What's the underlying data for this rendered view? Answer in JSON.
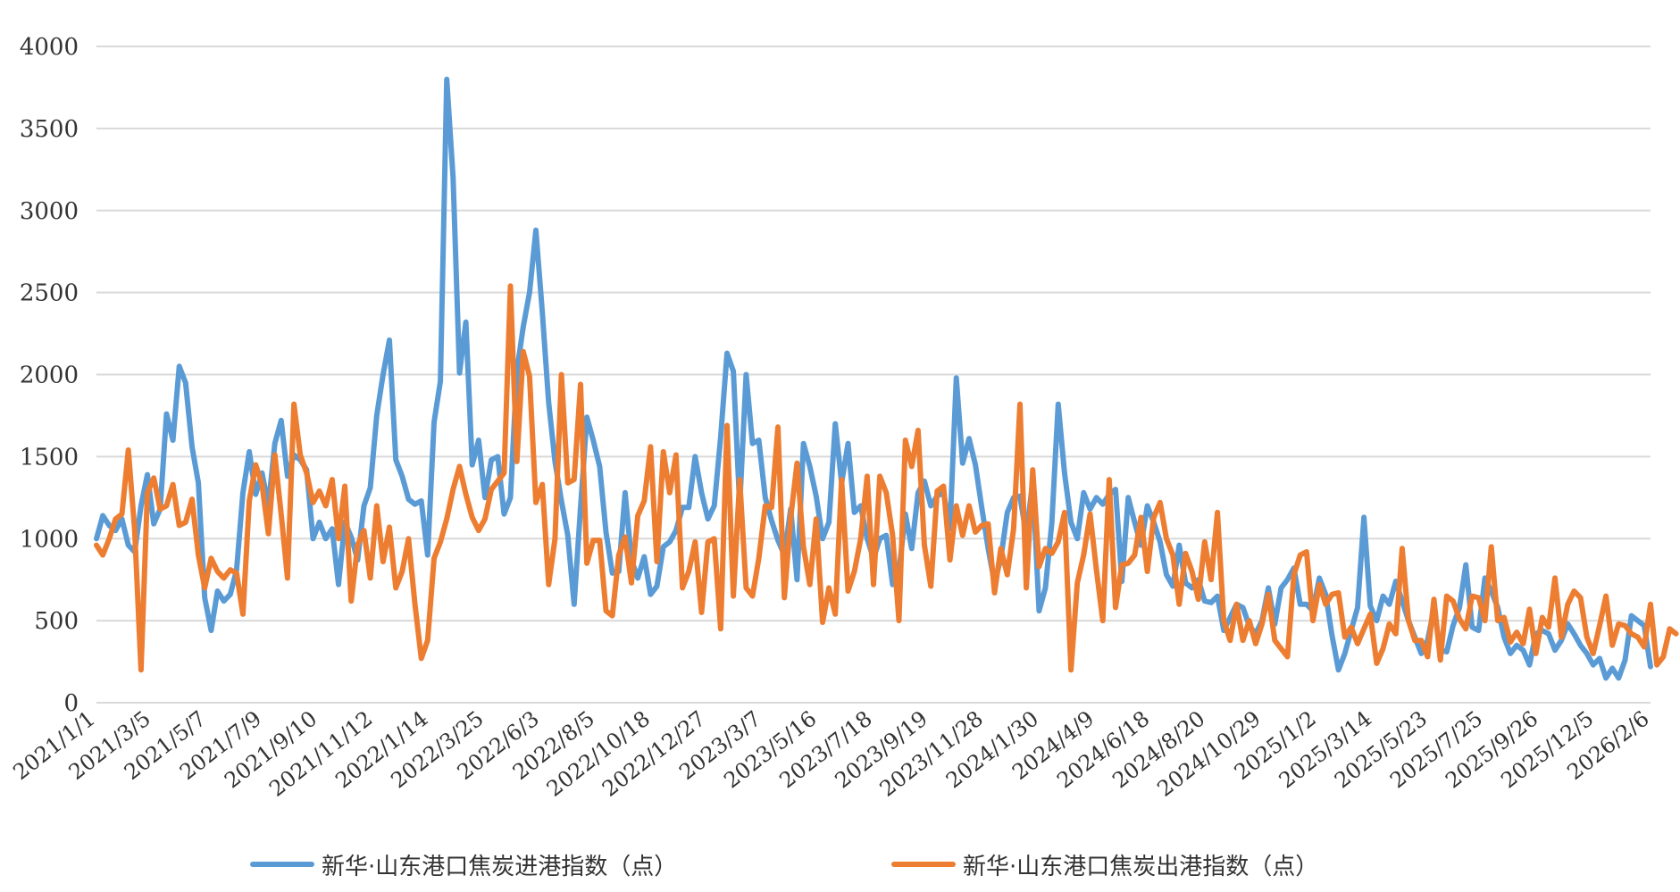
{
  "chart_data": {
    "type": "line",
    "title": "",
    "xlabel": "",
    "ylabel": "",
    "ylim": [
      0,
      4000
    ],
    "yticks": [
      "0",
      "500",
      "1000",
      "1500",
      "2000",
      "2500",
      "3000",
      "3500",
      "4000"
    ],
    "xticks": [
      "2021/1/1",
      "2021/3/5",
      "2021/5/7",
      "2021/7/9",
      "2021/9/10",
      "2021/11/12",
      "2022/1/14",
      "2022/3/25",
      "2022/6/3",
      "2022/8/5",
      "2022/10/18",
      "2022/12/27",
      "2023/3/7",
      "2023/5/16",
      "2023/7/18",
      "2023/9/19",
      "2023/11/28",
      "2024/1/30",
      "2024/4/9",
      "2024/6/18",
      "2024/8/20",
      "2024/10/29",
      "2025/1/2",
      "2025/3/14",
      "2025/5/23",
      "2025/7/25",
      "2025/9/26",
      "2025/12/5",
      "2026/2/6"
    ],
    "grid": true,
    "legend_position": "bottom",
    "series": [
      {
        "name": "新华·山东港口焦炭进港指数（点）",
        "color": "#5B9BD5",
        "values": [
          1000,
          1140,
          1080,
          1050,
          1120,
          960,
          920,
          1200,
          1390,
          1090,
          1180,
          1760,
          1600,
          2050,
          1950,
          1560,
          1340,
          640,
          440,
          680,
          620,
          660,
          810,
          1280,
          1530,
          1270,
          1400,
          1200,
          1580,
          1720,
          1380,
          1510,
          1480,
          1420,
          1000,
          1100,
          1000,
          1060,
          720,
          1100,
          1010,
          870,
          1200,
          1310,
          1750,
          2000,
          2210,
          1480,
          1380,
          1240,
          1210,
          1230,
          900,
          1710,
          1960,
          3800,
          3200,
          2010,
          2320,
          1450,
          1600,
          1250,
          1480,
          1500,
          1150,
          1250,
          2020,
          2290,
          2500,
          2880,
          2380,
          1830,
          1470,
          1230,
          1020,
          600,
          1190,
          1740,
          1600,
          1440,
          1040,
          790,
          800,
          1280,
          870,
          760,
          890,
          660,
          710,
          950,
          980,
          1050,
          1190,
          1190,
          1500,
          1280,
          1120,
          1200,
          1620,
          2130,
          2020,
          1200,
          2000,
          1580,
          1600,
          1250,
          1110,
          990,
          900,
          1180,
          750,
          1580,
          1440,
          1260,
          1000,
          1100,
          1700,
          1340,
          1580,
          1160,
          1200,
          1000,
          880,
          1000,
          1020,
          720,
          800,
          1150,
          940,
          1280,
          1350,
          1200,
          1260,
          1280,
          1060,
          1980,
          1460,
          1610,
          1450,
          1190,
          940,
          730,
          880,
          1160,
          1250,
          1260,
          1020,
          1350,
          560,
          700,
          1100,
          1820,
          1400,
          1100,
          1000,
          1280,
          1180,
          1250,
          1210,
          1270,
          1300,
          740,
          1250,
          1100,
          960,
          1200,
          1100,
          980,
          780,
          710,
          960,
          730,
          700,
          750,
          620,
          610,
          650,
          440,
          520,
          600,
          580,
          470,
          420,
          500,
          700,
          480,
          700,
          750,
          820,
          600,
          600,
          560,
          760,
          660,
          410,
          200,
          300,
          440,
          580,
          1130,
          590,
          500,
          650,
          600,
          740,
          620,
          500,
          400,
          300,
          380,
          570,
          320,
          310,
          470,
          580,
          840,
          460,
          440,
          760,
          680,
          580,
          400,
          300,
          350,
          320,
          230,
          420,
          440,
          420,
          320,
          380,
          480,
          420,
          350,
          300,
          230,
          270,
          150,
          210,
          150,
          260,
          530,
          500,
          470,
          220
        ]
      },
      {
        "name": "新华·山东港口焦炭出港指数（点）",
        "color": "#ED7D31",
        "values": [
          960,
          900,
          1000,
          1120,
          1150,
          1540,
          1050,
          200,
          1280,
          1370,
          1180,
          1200,
          1330,
          1080,
          1100,
          1240,
          900,
          700,
          880,
          800,
          760,
          810,
          790,
          540,
          1230,
          1450,
          1330,
          1030,
          1510,
          1150,
          760,
          1820,
          1510,
          1400,
          1220,
          1290,
          1200,
          1360,
          1000,
          1320,
          620,
          960,
          1050,
          760,
          1200,
          860,
          1070,
          700,
          800,
          1000,
          600,
          270,
          380,
          880,
          980,
          1120,
          1300,
          1440,
          1270,
          1130,
          1050,
          1120,
          1300,
          1350,
          1400,
          2540,
          1470,
          2140,
          1990,
          1220,
          1330,
          720,
          1000,
          2000,
          1340,
          1360,
          1940,
          850,
          990,
          990,
          560,
          530,
          900,
          1010,
          730,
          1140,
          1230,
          1560,
          860,
          1530,
          1280,
          1510,
          700,
          800,
          980,
          550,
          980,
          1000,
          450,
          1690,
          650,
          1360,
          700,
          650,
          880,
          1200,
          1190,
          1680,
          640,
          1130,
          1460,
          950,
          720,
          1120,
          490,
          700,
          540,
          1360,
          680,
          800,
          1000,
          1380,
          720,
          1380,
          1280,
          1020,
          500,
          1600,
          1440,
          1660,
          960,
          710,
          1290,
          1320,
          870,
          1200,
          1020,
          1200,
          1040,
          1080,
          1090,
          670,
          940,
          780,
          1060,
          1820,
          700,
          1420,
          830,
          940,
          910,
          980,
          1160,
          200,
          730,
          900,
          1150,
          810,
          500,
          1360,
          580,
          840,
          850,
          900,
          1130,
          800,
          1130,
          1220,
          1000,
          900,
          600,
          910,
          800,
          630,
          980,
          750,
          1160,
          500,
          380,
          600,
          380,
          500,
          360,
          480,
          660,
          380,
          330,
          280,
          780,
          900,
          920,
          500,
          720,
          600,
          660,
          670,
          400,
          460,
          360,
          450,
          540,
          240,
          330,
          480,
          420,
          940,
          500,
          380,
          380,
          280,
          630,
          260,
          650,
          620,
          510,
          450,
          650,
          640,
          500,
          950,
          500,
          520,
          370,
          430,
          360,
          570,
          300,
          520,
          460,
          760,
          400,
          600,
          680,
          640,
          400,
          300,
          470,
          650,
          350,
          480,
          470,
          420,
          400,
          340,
          600,
          230,
          280,
          450,
          420
        ]
      }
    ]
  }
}
